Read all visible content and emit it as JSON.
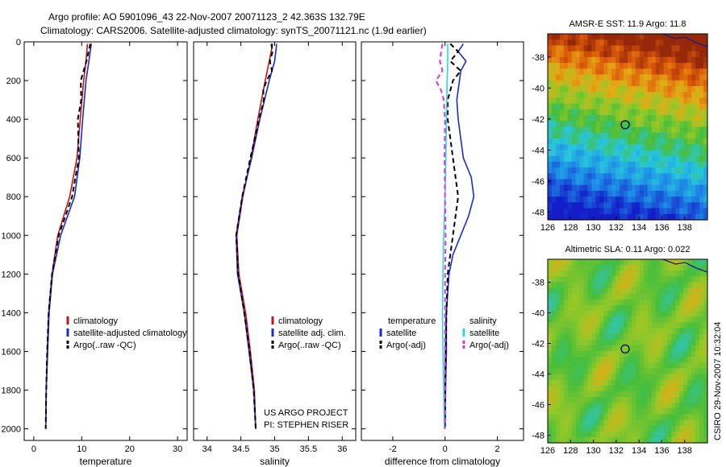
{
  "title_line1": "Argo profile: AO 5901096_43 22-Nov-2007 20071123_2 42.363S 132.79E",
  "title_line2": "Climatology: CARS2006. Satellite-adjusted climatology: synTS_20071121.nc (1.9d earlier)",
  "credit": "CSIRO 29-Nov-2007 10:32:04",
  "project_line1": "US ARGO PROJECT",
  "project_line2": "PI: STEPHEN RISER",
  "colors": {
    "clim": "#cc1111",
    "sat": "#1a2ccc",
    "argo": "#000000",
    "cyan": "#22dddd",
    "magenta": "#dd33dd"
  },
  "chart_data": [
    {
      "type": "line",
      "id": "temperature",
      "xlabel": "temperature",
      "xlim": [
        -2,
        32
      ],
      "ylim": [
        2060,
        0
      ],
      "xticks": [
        0,
        10,
        20,
        30
      ],
      "yticks": [
        0,
        200,
        400,
        600,
        800,
        1000,
        1200,
        1400,
        1600,
        1800,
        2000
      ],
      "legend": [
        "climatology",
        "satellite-adjusted climatology",
        "Argo(..raw -QC)"
      ],
      "series": [
        {
          "name": "climatology",
          "color": "#cc1111",
          "style": "solid",
          "depth": [
            10,
            100,
            200,
            400,
            600,
            800,
            1000,
            1200,
            1400,
            1600,
            1800,
            2000
          ],
          "values": [
            11.2,
            10.9,
            10.4,
            9.7,
            9.0,
            7.5,
            5.0,
            3.8,
            3.1,
            2.8,
            2.6,
            2.5
          ]
        },
        {
          "name": "satellite-adjusted climatology",
          "color": "#1a2ccc",
          "style": "solid",
          "depth": [
            10,
            100,
            200,
            400,
            600,
            800,
            1000,
            1200,
            1400,
            1600,
            1800,
            2000
          ],
          "values": [
            12.0,
            11.5,
            10.9,
            10.2,
            9.6,
            8.5,
            5.6,
            3.9,
            3.2,
            2.9,
            2.6,
            2.5
          ]
        },
        {
          "name": "Argo(..raw -QC)",
          "color": "#000000",
          "style": "dash",
          "depth": [
            10,
            100,
            200,
            300,
            400,
            600,
            800,
            1000,
            1200,
            1400,
            1600,
            1800,
            2000
          ],
          "values": [
            11.8,
            11.0,
            9.8,
            9.9,
            9.2,
            9.4,
            8.0,
            5.2,
            3.8,
            3.1,
            2.8,
            2.6,
            2.5
          ]
        }
      ]
    },
    {
      "type": "line",
      "id": "salinity",
      "xlabel": "salinity",
      "xlim": [
        33.8,
        36.2
      ],
      "ylim": [
        2060,
        0
      ],
      "xticks": [
        34,
        34.5,
        35,
        35.5,
        36
      ],
      "legend": [
        "climatology",
        "satellite adj. clim.",
        "Argo(..raw -QC)"
      ],
      "series": [
        {
          "name": "climatology",
          "color": "#cc1111",
          "style": "solid",
          "depth": [
            10,
            100,
            200,
            400,
            600,
            800,
            1000,
            1200,
            1400,
            1600,
            1800,
            2000
          ],
          "values": [
            34.97,
            34.92,
            34.86,
            34.75,
            34.65,
            34.53,
            34.44,
            34.47,
            34.57,
            34.64,
            34.7,
            34.72
          ]
        },
        {
          "name": "satellite adj. clim.",
          "color": "#1a2ccc",
          "style": "solid",
          "depth": [
            10,
            100,
            200,
            400,
            600,
            800,
            1000,
            1200,
            1400,
            1600,
            1800,
            2000
          ],
          "values": [
            35.03,
            35.0,
            34.92,
            34.78,
            34.66,
            34.52,
            34.43,
            34.45,
            34.55,
            34.62,
            34.69,
            34.72
          ]
        },
        {
          "name": "Argo(..raw -QC)",
          "color": "#000000",
          "style": "dash",
          "depth": [
            10,
            50,
            100,
            150,
            200,
            250,
            300,
            400,
            600,
            800,
            1000,
            1200,
            1400,
            1600,
            1800,
            2000
          ],
          "values": [
            34.95,
            34.97,
            34.93,
            34.96,
            34.88,
            34.83,
            34.84,
            34.77,
            34.64,
            34.52,
            34.43,
            34.46,
            34.55,
            34.63,
            34.69,
            34.72
          ]
        }
      ]
    },
    {
      "type": "line",
      "id": "difference",
      "xlabel": "difference from climatology",
      "xlim": [
        -3.2,
        3.0
      ],
      "ylim": [
        2060,
        0
      ],
      "xticks": [
        -2,
        0,
        2
      ],
      "legend_left_title": "temperature",
      "legend_right_title": "salinity",
      "legend_left": [
        "satellite",
        "Argo(-adj)"
      ],
      "legend_right": [
        "satellite",
        "Argo(-adj)"
      ],
      "series": [
        {
          "name": "temperature satellite",
          "color": "#1a2ccc",
          "style": "solid",
          "depth": [
            10,
            50,
            100,
            150,
            200,
            300,
            400,
            500,
            600,
            700,
            800,
            900,
            1000,
            1100,
            1200,
            1400,
            1600,
            1800,
            2000
          ],
          "values": [
            0.7,
            0.5,
            0.8,
            0.6,
            0.55,
            0.45,
            0.5,
            0.6,
            0.7,
            1.0,
            1.1,
            0.9,
            0.6,
            0.3,
            0.15,
            0.05,
            0.05,
            0.02,
            0.0
          ]
        },
        {
          "name": "temperature Argo(-adj)",
          "color": "#000000",
          "style": "dash",
          "depth": [
            10,
            50,
            100,
            150,
            200,
            300,
            400,
            600,
            700,
            800,
            900,
            1000,
            1100,
            1200,
            1400,
            1600,
            1800,
            2000
          ],
          "values": [
            0.2,
            0.5,
            0.2,
            0.6,
            0.3,
            0.1,
            0.1,
            0.3,
            0.4,
            0.5,
            0.4,
            0.3,
            0.2,
            0.1,
            0.05,
            0.02,
            0.0,
            0.0
          ]
        },
        {
          "name": "salinity satellite",
          "color": "#22dddd",
          "style": "solid",
          "depth": [
            10,
            100,
            200,
            400,
            600,
            800,
            1000,
            1200,
            1400,
            1600,
            1800,
            2000
          ],
          "values": [
            0.1,
            0.1,
            0.08,
            0.05,
            0.03,
            0.0,
            -0.05,
            -0.08,
            -0.1,
            -0.08,
            -0.05,
            -0.03
          ]
        },
        {
          "name": "salinity Argo(-adj)",
          "color": "#dd33dd",
          "style": "dash",
          "depth": [
            10,
            50,
            100,
            150,
            200,
            250,
            300,
            400,
            600,
            800,
            1000,
            1200,
            1400,
            1600,
            1800,
            2000
          ],
          "values": [
            -0.1,
            -0.15,
            -0.2,
            -0.1,
            -0.35,
            -0.15,
            -0.05,
            0.0,
            -0.02,
            0.0,
            0.02,
            0.0,
            0.0,
            0.0,
            0.0,
            0.0
          ]
        }
      ]
    },
    {
      "type": "heatmap",
      "id": "sst",
      "title": "AMSR-E SST: 11.9 Argo: 11.8",
      "lon_range": [
        126,
        140
      ],
      "lat_range": [
        -48.5,
        -36.5
      ],
      "xticks": [
        126,
        128,
        130,
        132,
        134,
        136,
        138
      ],
      "yticks": [
        -38,
        -40,
        -42,
        -44,
        -46,
        -48
      ],
      "marker_lon": 132.79,
      "marker_lat": -42.363
    },
    {
      "type": "heatmap",
      "id": "sla",
      "title": "Altimetric SLA: 0.11 Argo: 0.022",
      "lon_range": [
        126,
        140
      ],
      "lat_range": [
        -48.5,
        -36.5
      ],
      "xticks": [
        126,
        128,
        130,
        132,
        134,
        136,
        138
      ],
      "yticks": [
        -38,
        -40,
        -42,
        -44,
        -46,
        -48
      ],
      "marker_lon": 132.79,
      "marker_lat": -42.363
    }
  ]
}
